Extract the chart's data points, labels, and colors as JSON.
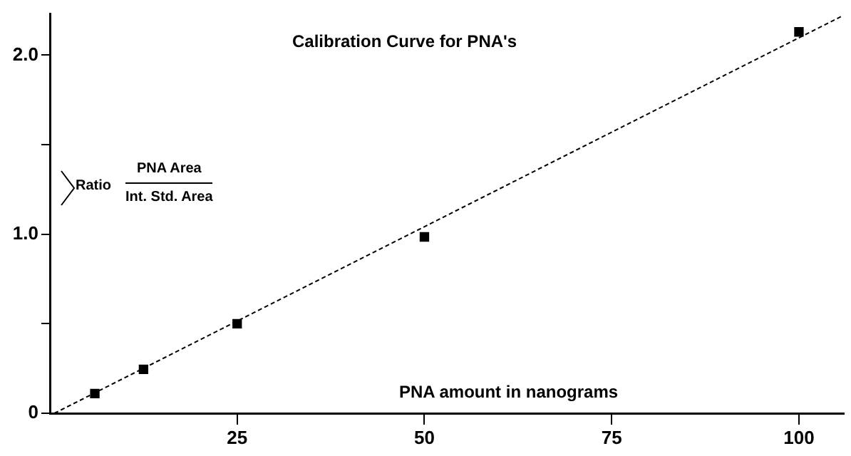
{
  "chart_data": {
    "type": "scatter",
    "title": "Calibration Curve for PNA's",
    "xlabel": "PNA amount in nanograms",
    "ylabel": "Ratio",
    "annotations": [
      "PNA Area",
      "Int. Std. Area"
    ],
    "xlim": [
      0,
      106
    ],
    "xticks": [
      25,
      50,
      75,
      100
    ],
    "ylim": [
      0,
      2.23
    ],
    "yticks": [
      {
        "value": 0,
        "label": "0"
      },
      {
        "value": 0.5,
        "label": null
      },
      {
        "value": 1,
        "label": "1.0"
      },
      {
        "value": 1.5,
        "label": null
      },
      {
        "value": 2,
        "label": "2.0"
      }
    ],
    "grid": false,
    "legend": false,
    "series": [
      {
        "type": "scatter",
        "color": "#000000",
        "marker": "square",
        "x": [
          6,
          12.5,
          25,
          50,
          100
        ],
        "values": [
          0.11,
          0.245,
          0.5,
          0.985,
          2.13
        ]
      },
      {
        "type": "line",
        "color": "#000000",
        "marker": "none",
        "line_style": "dashed",
        "x": [
          0.6,
          105.6
        ],
        "values": [
          0,
          2.215
        ]
      }
    ]
  }
}
